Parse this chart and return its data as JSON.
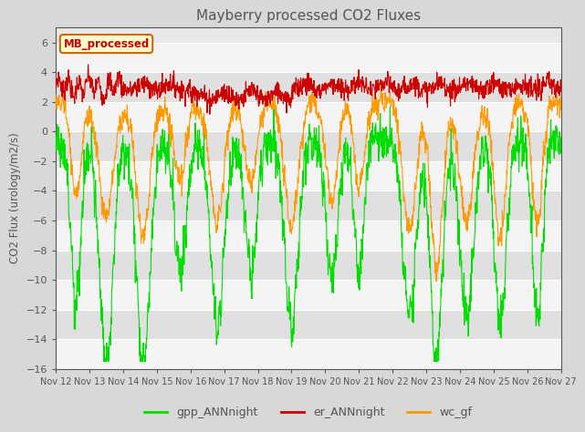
{
  "title": "Mayberry processed CO2 Fluxes",
  "ylabel": "CO2 Flux (urology/m2/s)",
  "ylim": [
    -16,
    7
  ],
  "yticks": [
    -16,
    -14,
    -12,
    -10,
    -8,
    -6,
    -4,
    -2,
    0,
    2,
    4,
    6
  ],
  "n_points": 1500,
  "series": {
    "gpp_ANNnight": {
      "color": "#00dd00",
      "linewidth": 0.8
    },
    "er_ANNnight": {
      "color": "#cc0000",
      "linewidth": 0.8
    },
    "wc_gf": {
      "color": "#ff9900",
      "linewidth": 0.8
    }
  },
  "legend_label": "MB_processed",
  "legend_label_color": "#cc0000",
  "legend_box_facecolor": "#ffffcc",
  "legend_box_edgecolor": "#cc6600",
  "background_color": "#d8d8d8",
  "plot_bg_color": "#e8e8e8",
  "title_color": "#555555",
  "axis_color": "#555555",
  "tick_color": "#555555",
  "grid_color": "#ffffff",
  "xlabel_dates": [
    "Nov 12",
    "Nov 13",
    "Nov 14",
    "Nov 15",
    "Nov 16",
    "Nov 17",
    "Nov 18",
    "Nov 19",
    "Nov 20",
    "Nov 21",
    "Nov 22",
    "Nov 23",
    "Nov 24",
    "Nov 25",
    "Nov 26",
    "Nov 27"
  ],
  "dip_centers": [
    0.6,
    1.5,
    2.6,
    3.7,
    4.8,
    5.8,
    7.0,
    8.2,
    9.0,
    10.5,
    11.3,
    12.2,
    13.2,
    14.3
  ],
  "dip_widths": [
    0.3,
    0.4,
    0.4,
    0.35,
    0.4,
    0.35,
    0.4,
    0.35,
    0.3,
    0.4,
    0.35,
    0.4,
    0.35,
    0.3
  ],
  "gpp_dip_depths": [
    11,
    15,
    15,
    9,
    12.5,
    9,
    12.5,
    9.5,
    9,
    12,
    15,
    12,
    12.5,
    12
  ],
  "wc_dip_depths": [
    6,
    8,
    9,
    5,
    8,
    5,
    8,
    6,
    5.5,
    8,
    11,
    8,
    9,
    8
  ]
}
